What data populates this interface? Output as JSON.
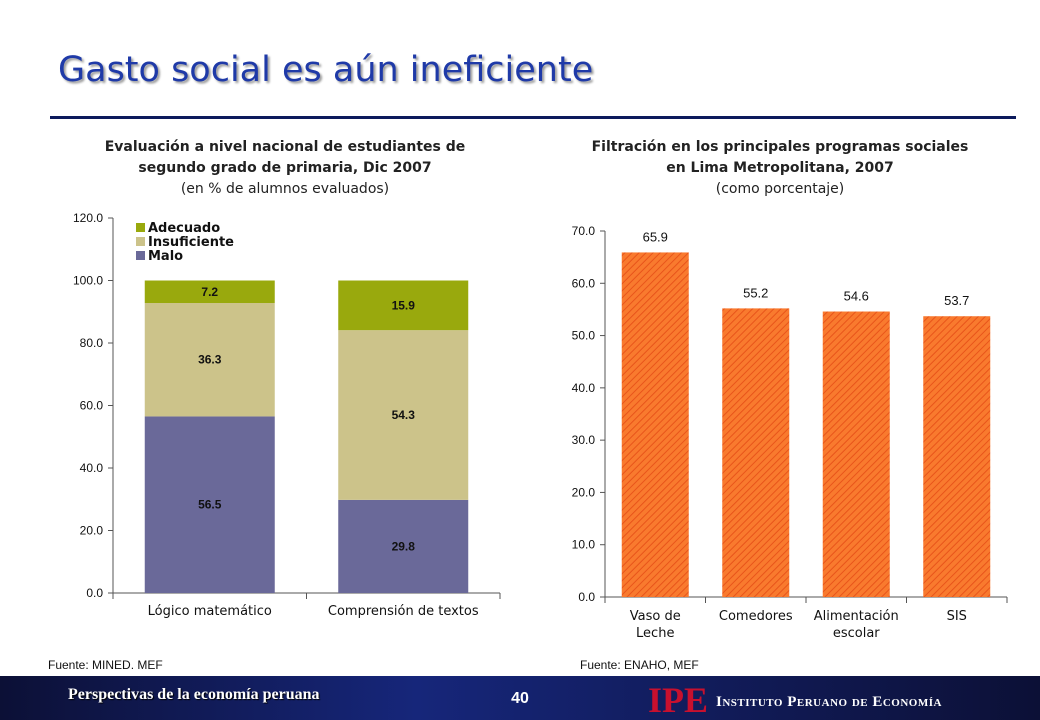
{
  "slide": {
    "title": "Gasto social es aún ineficiente",
    "page_number": "40",
    "footer_text": "Perspectivas de la economía peruana",
    "logo_text": "IPE",
    "institution": "Instituto Peruano de Economía"
  },
  "colors": {
    "title": "#1f3aa8",
    "adecuado": "#99a90d",
    "insuficiente": "#ccc38a",
    "malo": "#6a6999",
    "orange_bar": "#f97a2e"
  },
  "chart_data": [
    {
      "type": "bar",
      "stacked": true,
      "title_line1": "Evaluación a nivel nacional de estudiantes de",
      "title_line2": "segundo grado de primaria, Dic 2007",
      "subtitle": "(en % de alumnos evaluados)",
      "categories": [
        "Lógico matemático",
        "Comprensión de textos"
      ],
      "series": [
        {
          "name": "Malo",
          "values": [
            56.5,
            29.8
          ],
          "labels": [
            "56.5",
            "29.8"
          ]
        },
        {
          "name": "Insuficiente",
          "values": [
            36.3,
            54.3
          ],
          "labels": [
            "36.3",
            "54.3"
          ]
        },
        {
          "name": "Adecuado",
          "values": [
            7.2,
            15.9
          ],
          "labels": [
            "7.2",
            "15.9"
          ]
        }
      ],
      "legend_order": [
        "Adecuado",
        "Insuficiente",
        "Malo"
      ],
      "legend_placement": "top-left",
      "ylim": [
        0,
        120
      ],
      "yticks": [
        0,
        20,
        40,
        60,
        80,
        100,
        120
      ],
      "ytick_labels": [
        "0.0",
        "20.0",
        "40.0",
        "60.0",
        "80.0",
        "100.0",
        "120.0"
      ],
      "grid": false,
      "source": "Fuente: MINED. MEF"
    },
    {
      "type": "bar",
      "title_line1": "Filtración en los principales programas sociales",
      "title_line2": "en Lima Metropolitana, 2007",
      "subtitle": "(como porcentaje)",
      "categories": [
        [
          "Vaso de",
          "Leche"
        ],
        [
          "Comedores"
        ],
        [
          "Alimentación",
          "escolar"
        ],
        [
          "SIS"
        ]
      ],
      "values": [
        65.9,
        55.2,
        54.6,
        53.7
      ],
      "labels": [
        "65.9",
        "55.2",
        "54.6",
        "53.7"
      ],
      "ylim": [
        0,
        70
      ],
      "yticks": [
        0,
        10,
        20,
        30,
        40,
        50,
        60,
        70
      ],
      "ytick_labels": [
        "0.0",
        "10.0",
        "20.0",
        "30.0",
        "40.0",
        "50.0",
        "60.0",
        "70.0"
      ],
      "grid": false,
      "source": "Fuente: ENAHO, MEF"
    }
  ]
}
